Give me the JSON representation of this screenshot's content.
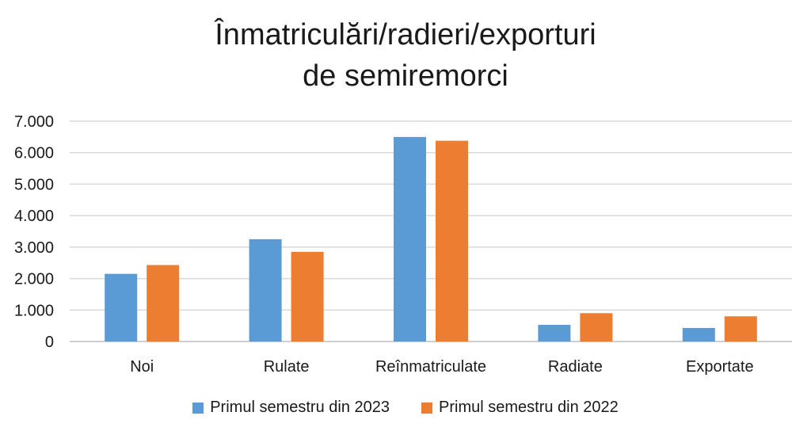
{
  "chart_data": {
    "type": "bar",
    "title_lines": [
      "Înmatriculări/radieri/exporturi",
      "de semiremorci"
    ],
    "categories": [
      "Noi",
      "Rulate",
      "Reînmatriculate",
      "Radiate",
      "Exportate"
    ],
    "series": [
      {
        "name": "Primul semestru din 2023",
        "color": "#5B9BD5",
        "values": [
          2150,
          3250,
          6500,
          530,
          430
        ]
      },
      {
        "name": "Primul semestru din 2022",
        "color": "#ED7D31",
        "values": [
          2430,
          2850,
          6380,
          900,
          800
        ]
      }
    ],
    "yticks": [
      "0",
      "1.000",
      "2.000",
      "3.000",
      "4.000",
      "5.000",
      "6.000",
      "7.000"
    ],
    "ylim": [
      0,
      7000
    ],
    "grid": true,
    "legend_position": "bottom",
    "xlabel": "",
    "ylabel": ""
  }
}
